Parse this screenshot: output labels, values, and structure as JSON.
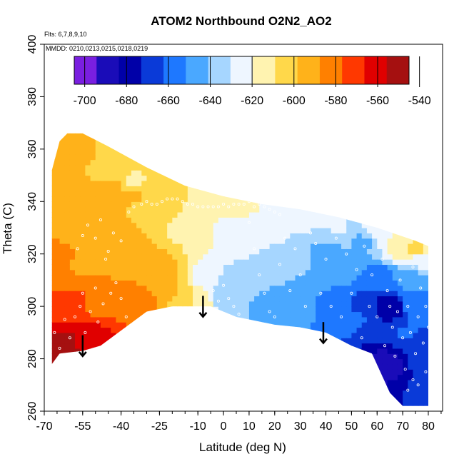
{
  "chart_data": {
    "type": "heatmap",
    "title": "ATOM2 Northbound O2N2_AO2",
    "subtitle_flights": "Flts: 6,7,8,9,10",
    "subtitle_dates": "MMDD: 0210,0213,0215,0218,0219",
    "xlabel": "Latitude (deg N)",
    "ylabel": "Theta (C)",
    "xlim": [
      -70,
      80
    ],
    "ylim": [
      260,
      400
    ],
    "x_ticks": [
      -70,
      -55,
      -40,
      -25,
      -10,
      0,
      10,
      20,
      30,
      40,
      50,
      60,
      70,
      80
    ],
    "x_tick_labels": [
      "-70",
      "-55",
      "-40",
      "-25",
      "-10",
      "0",
      "10",
      "20",
      "30",
      "40",
      "50",
      "60",
      "70",
      "80"
    ],
    "y_ticks": [
      260,
      280,
      300,
      320,
      340,
      360,
      380,
      400
    ],
    "y_tick_labels": [
      "260",
      "280",
      "300",
      "320",
      "340",
      "360",
      "380",
      "400"
    ],
    "colorbar": {
      "range": [
        -705,
        -545
      ],
      "ticks": [
        -700,
        -680,
        -660,
        -640,
        -620,
        -600,
        -580,
        -560,
        -540
      ],
      "tick_labels": [
        "-700",
        "-680",
        "-660",
        "-640",
        "-620",
        "-600",
        "-580",
        "-560",
        "-540"
      ],
      "colors": [
        "#7a1fe0",
        "#1a0cb8",
        "#0000a8",
        "#0a3ad8",
        "#1e78ff",
        "#4aa8ff",
        "#a6d6ff",
        "#eef6ff",
        "#fff3b0",
        "#ffd84a",
        "#ffb21a",
        "#ff8000",
        "#ff3800",
        "#e00000",
        "#a51010"
      ]
    },
    "upper_boundary": [
      [
        -67,
        352
      ],
      [
        -64,
        363
      ],
      [
        -61,
        366
      ],
      [
        -55,
        366
      ],
      [
        -45,
        361
      ],
      [
        -30,
        353
      ],
      [
        -15,
        346
      ],
      [
        0,
        342
      ],
      [
        15,
        339
      ],
      [
        30,
        337
      ],
      [
        45,
        334
      ],
      [
        60,
        330
      ],
      [
        75,
        325
      ],
      [
        80,
        323
      ]
    ],
    "lower_boundary": [
      [
        -67,
        278
      ],
      [
        -64,
        282
      ],
      [
        -55,
        283
      ],
      [
        -48,
        285
      ],
      [
        -30,
        298
      ],
      [
        -20,
        300
      ],
      [
        -5,
        300
      ],
      [
        5,
        296
      ],
      [
        20,
        293
      ],
      [
        30,
        292
      ],
      [
        40,
        290
      ],
      [
        50,
        285
      ],
      [
        58,
        282
      ],
      [
        65,
        267
      ],
      [
        70,
        262
      ],
      [
        80,
        262
      ]
    ],
    "field_samples": [
      [
        -66,
        285,
        -552
      ],
      [
        -60,
        285,
        -548
      ],
      [
        -55,
        286,
        -560
      ],
      [
        -50,
        290,
        -565
      ],
      [
        -66,
        300,
        -572
      ],
      [
        -58,
        300,
        -575
      ],
      [
        -48,
        300,
        -580
      ],
      [
        -38,
        300,
        -578
      ],
      [
        -30,
        302,
        -585
      ],
      [
        -66,
        315,
        -586
      ],
      [
        -55,
        315,
        -588
      ],
      [
        -45,
        318,
        -590
      ],
      [
        -35,
        315,
        -588
      ],
      [
        -25,
        312,
        -592
      ],
      [
        -65,
        335,
        -588
      ],
      [
        -55,
        340,
        -590
      ],
      [
        -45,
        345,
        -593
      ],
      [
        -35,
        343,
        -598
      ],
      [
        -25,
        340,
        -600
      ],
      [
        -62,
        355,
        -596
      ],
      [
        -55,
        358,
        -598
      ],
      [
        -45,
        352,
        -604
      ],
      [
        -35,
        348,
        -610
      ],
      [
        -20,
        305,
        -598
      ],
      [
        -15,
        303,
        -605
      ],
      [
        -10,
        303,
        -612
      ],
      [
        -15,
        330,
        -610
      ],
      [
        -5,
        338,
        -618
      ],
      [
        0,
        330,
        -620
      ],
      [
        5,
        340,
        -615
      ],
      [
        -5,
        310,
        -630
      ],
      [
        0,
        305,
        -640
      ],
      [
        10,
        310,
        -636
      ],
      [
        10,
        325,
        -628
      ],
      [
        20,
        330,
        -626
      ],
      [
        20,
        300,
        -648
      ],
      [
        20,
        315,
        -638
      ],
      [
        30,
        300,
        -650
      ],
      [
        30,
        320,
        -640
      ],
      [
        30,
        335,
        -624
      ],
      [
        40,
        300,
        -652
      ],
      [
        40,
        320,
        -644
      ],
      [
        45,
        330,
        -630
      ],
      [
        50,
        295,
        -658
      ],
      [
        50,
        315,
        -648
      ],
      [
        55,
        300,
        -665
      ],
      [
        55,
        325,
        -642
      ],
      [
        60,
        290,
        -672
      ],
      [
        60,
        310,
        -660
      ],
      [
        62,
        280,
        -685
      ],
      [
        65,
        275,
        -692
      ],
      [
        65,
        300,
        -682
      ],
      [
        68,
        270,
        -678
      ],
      [
        70,
        290,
        -662
      ],
      [
        72,
        310,
        -650
      ],
      [
        75,
        268,
        -668
      ],
      [
        75,
        300,
        -656
      ],
      [
        78,
        280,
        -666
      ],
      [
        78,
        318,
        -630
      ],
      [
        75,
        322,
        -605
      ],
      [
        70,
        324,
        -612
      ],
      [
        60,
        328,
        -622
      ]
    ],
    "flight_track_points": [
      [
        -66,
        290
      ],
      [
        -64,
        284
      ],
      [
        -62,
        295
      ],
      [
        -60,
        288
      ],
      [
        -58,
        296
      ],
      [
        -56,
        300
      ],
      [
        -55,
        305
      ],
      [
        -54,
        290
      ],
      [
        -52,
        298
      ],
      [
        -50,
        307
      ],
      [
        -49,
        294
      ],
      [
        -47,
        301
      ],
      [
        -44,
        305
      ],
      [
        -42,
        309
      ],
      [
        -40,
        303
      ],
      [
        -38,
        296
      ],
      [
        -57,
        322
      ],
      [
        -55,
        327
      ],
      [
        -53,
        331
      ],
      [
        -50,
        326
      ],
      [
        -48,
        333
      ],
      [
        -46,
        318
      ],
      [
        -45,
        321
      ],
      [
        -43,
        328
      ],
      [
        -40,
        325
      ],
      [
        -37,
        336
      ],
      [
        -35,
        338
      ],
      [
        -32,
        339
      ],
      [
        -30,
        340
      ],
      [
        -28,
        339
      ],
      [
        -26,
        339
      ],
      [
        -24,
        340
      ],
      [
        -22,
        341
      ],
      [
        -20,
        341
      ],
      [
        -18,
        341
      ],
      [
        -16,
        340
      ],
      [
        -14,
        339
      ],
      [
        -12,
        339
      ],
      [
        -10,
        338
      ],
      [
        -8,
        338
      ],
      [
        -6,
        338
      ],
      [
        -4,
        338
      ],
      [
        -2,
        338
      ],
      [
        0,
        339
      ],
      [
        2,
        338
      ],
      [
        4,
        339
      ],
      [
        6,
        339
      ],
      [
        8,
        339
      ],
      [
        10,
        340
      ],
      [
        12,
        338
      ],
      [
        14,
        339
      ],
      [
        16,
        338
      ],
      [
        18,
        337
      ],
      [
        20,
        336
      ],
      [
        22,
        335
      ],
      [
        -4,
        306
      ],
      [
        -2,
        302
      ],
      [
        0,
        308
      ],
      [
        2,
        303
      ],
      [
        4,
        300
      ],
      [
        6,
        297
      ],
      [
        10,
        332
      ],
      [
        12,
        322
      ],
      [
        14,
        312
      ],
      [
        16,
        305
      ],
      [
        18,
        298
      ],
      [
        20,
        296
      ],
      [
        22,
        316
      ],
      [
        24,
        326
      ],
      [
        26,
        306
      ],
      [
        28,
        322
      ],
      [
        30,
        312
      ],
      [
        32,
        300
      ],
      [
        34,
        328
      ],
      [
        36,
        324
      ],
      [
        38,
        305
      ],
      [
        40,
        318
      ],
      [
        42,
        300
      ],
      [
        44,
        326
      ],
      [
        46,
        296
      ],
      [
        48,
        320
      ],
      [
        50,
        305
      ],
      [
        52,
        314
      ],
      [
        54,
        288
      ],
      [
        55,
        323
      ],
      [
        57,
        300
      ],
      [
        58,
        312
      ],
      [
        60,
        296
      ],
      [
        62,
        318
      ],
      [
        63,
        285
      ],
      [
        64,
        306
      ],
      [
        65,
        300
      ],
      [
        66,
        292
      ],
      [
        67,
        281
      ],
      [
        68,
        298
      ],
      [
        69,
        310
      ],
      [
        70,
        288
      ],
      [
        71,
        276
      ],
      [
        72,
        300
      ],
      [
        73,
        290
      ],
      [
        74,
        315
      ],
      [
        75,
        282
      ],
      [
        76,
        296
      ],
      [
        77,
        307
      ],
      [
        78,
        286
      ],
      [
        79,
        300
      ],
      [
        79,
        275
      ],
      [
        80,
        292
      ],
      [
        76,
        270
      ],
      [
        74,
        272
      ],
      [
        72,
        268
      ]
    ],
    "arrows": [
      [
        -55,
        289,
        281
      ],
      [
        -8,
        304,
        296
      ],
      [
        39,
        294,
        286
      ]
    ]
  }
}
